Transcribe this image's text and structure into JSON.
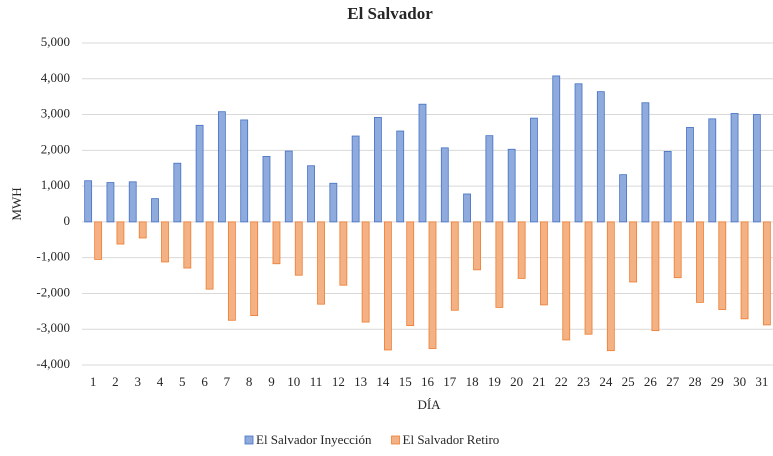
{
  "chart_data": {
    "type": "bar",
    "title": "El Salvador",
    "x_label": "DÍA",
    "y_label": "MWH",
    "categories": [
      "1",
      "2",
      "3",
      "4",
      "5",
      "6",
      "7",
      "8",
      "9",
      "10",
      "11",
      "12",
      "13",
      "14",
      "15",
      "16",
      "17",
      "18",
      "19",
      "20",
      "21",
      "22",
      "23",
      "24",
      "25",
      "26",
      "27",
      "28",
      "29",
      "30",
      "31"
    ],
    "series": [
      {
        "name": "El Salvador Inyección",
        "color": "#8faadc",
        "stroke": "#4472c4",
        "values": [
          1150,
          1100,
          1120,
          650,
          1640,
          2700,
          3080,
          2850,
          1830,
          1980,
          1570,
          1080,
          2400,
          2920,
          2540,
          3290,
          2070,
          780,
          2410,
          2030,
          2900,
          4080,
          3860,
          3640,
          1320,
          3330,
          1970,
          2640,
          2880,
          3030,
          3000
        ]
      },
      {
        "name": "El Salvador Retiro",
        "color": "#f4b183",
        "stroke": "#ed7d31",
        "values": [
          -1050,
          -620,
          -450,
          -1120,
          -1290,
          -1880,
          -2750,
          -2620,
          -1170,
          -1490,
          -2300,
          -1770,
          -2800,
          -3580,
          -2900,
          -3540,
          -2470,
          -1340,
          -2390,
          -1580,
          -2320,
          -3300,
          -3140,
          -3600,
          -1680,
          -3040,
          -1560,
          -2250,
          -2450,
          -2710,
          -2880
        ]
      }
    ],
    "ylim": [
      -4000,
      5000
    ],
    "yticks": [
      {
        "value": -4000,
        "label": "-4,000"
      },
      {
        "value": -3000,
        "label": "-3,000"
      },
      {
        "value": -2000,
        "label": "-2,000"
      },
      {
        "value": -1000,
        "label": "-1,000"
      },
      0,
      {
        "value": 1000,
        "label": "1,000"
      },
      {
        "value": 2000,
        "label": "2,000"
      },
      {
        "value": 3000,
        "label": "3,000"
      },
      {
        "value": 4000,
        "label": "4,000"
      },
      {
        "value": 5000,
        "label": "5,000"
      }
    ],
    "grid": true,
    "legend": "bottom"
  }
}
